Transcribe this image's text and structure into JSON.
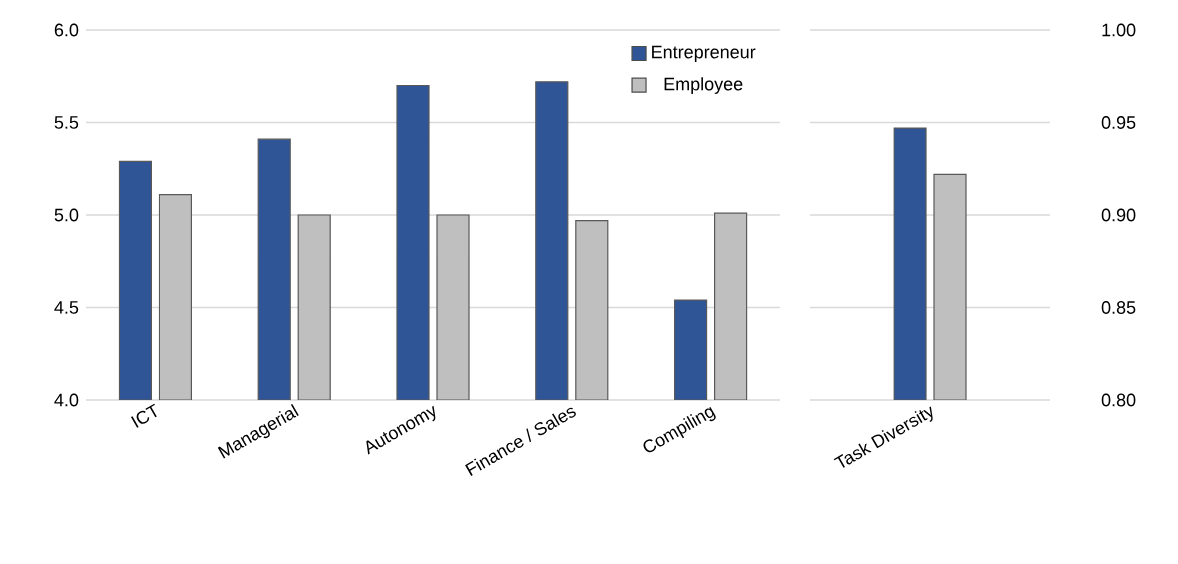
{
  "chart_data": [
    {
      "type": "bar",
      "categories": [
        "ICT",
        "Managerial",
        "Autonomy",
        "Finance / Sales",
        "Compiling"
      ],
      "series": [
        {
          "name": "Entrepreneur",
          "color": "#2f5597",
          "values": [
            5.29,
            5.41,
            5.7,
            5.72,
            4.54
          ]
        },
        {
          "name": "Employee",
          "color": "#bfbfbf",
          "values": [
            5.11,
            5.0,
            5.0,
            4.97,
            5.01
          ]
        }
      ],
      "ylim": [
        4.0,
        6.0
      ],
      "yticks": [
        {
          "value": 4.0,
          "label": "4.0"
        },
        {
          "value": 4.5,
          "label": "4.5"
        },
        {
          "value": 5.0,
          "label": "5.0"
        },
        {
          "value": 5.5,
          "label": "5.5"
        },
        {
          "value": 6.0,
          "label": "6.0"
        }
      ],
      "grid": "y",
      "legend": "top right"
    },
    {
      "type": "bar",
      "categories": [
        "Task Diversity"
      ],
      "series": [
        {
          "color": "#2f5597",
          "values": [
            0.947
          ]
        },
        {
          "color": "#bfbfbf",
          "values": [
            0.922
          ]
        }
      ],
      "ylim": [
        0.8,
        1.0
      ],
      "yticks": [
        {
          "value": 0.8,
          "label": "0.80"
        },
        {
          "value": 0.85,
          "label": "0.85"
        },
        {
          "value": 0.9,
          "label": "0.90"
        },
        {
          "value": 0.95,
          "label": "0.95"
        },
        {
          "value": 1.0,
          "label": "1.00"
        }
      ],
      "grid": "y"
    }
  ]
}
